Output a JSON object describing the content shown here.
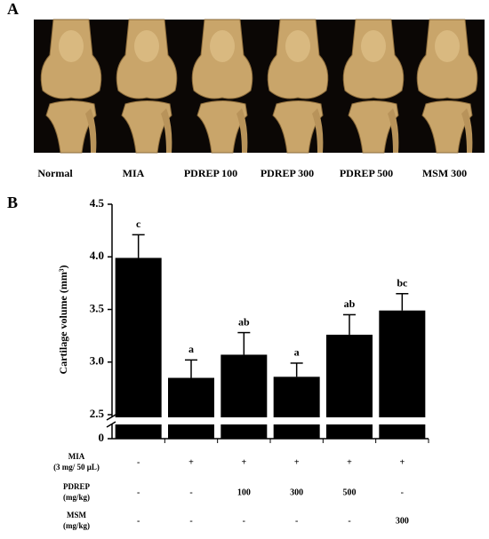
{
  "panel_a": {
    "label": "A",
    "captions": [
      "Normal",
      "MIA",
      "PDREP 100",
      "PDREP 300",
      "PDREP 500",
      "MSM 300"
    ]
  },
  "chart_data": {
    "type": "bar",
    "panel_label": "B",
    "ylabel": "Cartilage volume (mm³)",
    "categories": [
      null,
      null,
      null,
      null,
      null,
      null
    ],
    "values": [
      3.99,
      2.85,
      3.07,
      2.86,
      3.26,
      3.49
    ],
    "errors": [
      0.22,
      0.17,
      0.21,
      0.13,
      0.19,
      0.16
    ],
    "letters": [
      "c",
      "a",
      "ab",
      "a",
      "ab",
      "bc"
    ],
    "color": "#000000",
    "ylim": [
      2.5,
      4.5
    ],
    "yticks": [
      0,
      2.5,
      {
        "value": 3,
        "label": "3.0"
      },
      3.5,
      {
        "value": 4,
        "label": "4.0"
      },
      4.5
    ],
    "axis_break": true,
    "treatments": [
      {
        "label": [
          "MIA",
          "(3 mg/ 50 μL)"
        ],
        "values": [
          "-",
          "+",
          "+",
          "+",
          "+",
          "+"
        ]
      },
      {
        "label": [
          "PDREP",
          "(mg/kg)"
        ],
        "values": [
          "-",
          "-",
          "100",
          "300",
          "500",
          "-"
        ]
      },
      {
        "label": [
          "MSM",
          "(mg/kg)"
        ],
        "values": [
          "-",
          "-",
          "-",
          "-",
          "-",
          "300"
        ]
      }
    ]
  }
}
